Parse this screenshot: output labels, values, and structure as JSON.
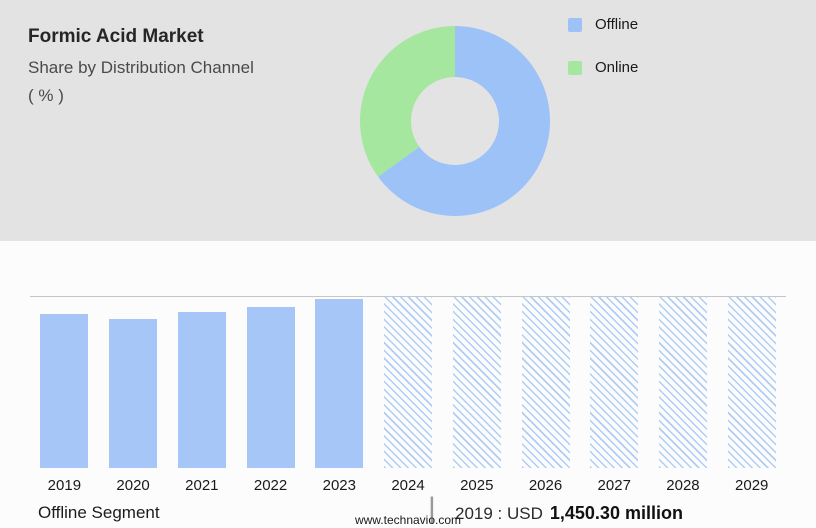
{
  "header": {
    "title": "Formic Acid Market",
    "subtitle": "Share by Distribution Channel",
    "unit": "( % )"
  },
  "legend": {
    "items": [
      {
        "label": "Offline",
        "color": "#9cc2f8"
      },
      {
        "label": "Online",
        "color": "#a6e7a0"
      }
    ]
  },
  "colors": {
    "top_background": "#e3e3e3",
    "bar_solid": "#a5c6f6",
    "hatch_line": "#aecdf6",
    "donut_offline": "#9cc2f8",
    "donut_online": "#a6e7a0"
  },
  "chart_data": [
    {
      "type": "pie",
      "title": "Formic Acid Market - Share by Distribution Channel ( % )",
      "labels": [
        "Offline",
        "Online"
      ],
      "values": [
        65,
        35
      ],
      "colors": [
        "#9cc2f8",
        "#a6e7a0"
      ],
      "donut": true,
      "start_angle_deg": 0,
      "legend_position": "right"
    },
    {
      "type": "bar",
      "title": "Offline Segment",
      "categories": [
        "2019",
        "2020",
        "2021",
        "2022",
        "2023",
        "2024",
        "2025",
        "2026",
        "2027",
        "2028",
        "2029"
      ],
      "values": [
        90,
        87,
        91,
        94,
        99,
        100,
        100,
        100,
        100,
        100,
        100
      ],
      "forecast_from": "2024",
      "note": "no y-axis shown; values are relative bar heights, forecast years 2024-2029 drawn as hatched full-height bars",
      "ylim": [
        0,
        100
      ],
      "grid": "single top boundary line",
      "xlabel": "",
      "ylabel": ""
    }
  ],
  "caption": {
    "segment_label": "Offline Segment",
    "divider": "|",
    "value_prefix": "2019 : USD",
    "value": "1,450.30 million"
  },
  "footer": {
    "url": "www.technavio.com"
  }
}
